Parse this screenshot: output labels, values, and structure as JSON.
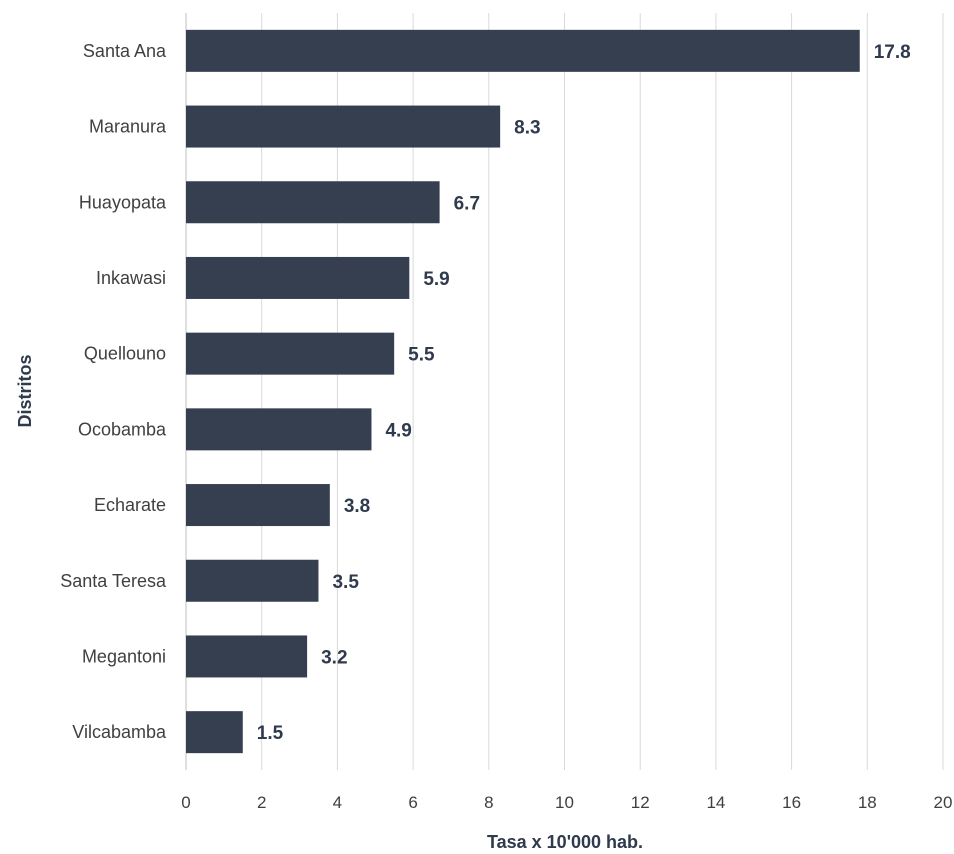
{
  "chart_data": {
    "type": "bar",
    "orientation": "horizontal",
    "categories": [
      "Santa Ana",
      "Maranura",
      "Huayopata",
      "Inkawasi",
      "Quellouno",
      "Ocobamba",
      "Echarate",
      "Santa Teresa",
      "Megantoni",
      "Vilcabamba"
    ],
    "values": [
      17.8,
      8.3,
      6.7,
      5.9,
      5.5,
      4.9,
      3.8,
      3.5,
      3.2,
      1.5
    ],
    "value_labels": [
      "17.8",
      "8.3",
      "6.7",
      "5.9",
      "5.5",
      "4.9",
      "3.8",
      "3.5",
      "3.2",
      "1.5"
    ],
    "xlabel": "Tasa x 10'000  hab.",
    "ylabel": "Distritos",
    "xlim": [
      0,
      20
    ],
    "x_ticks": [
      0,
      2,
      4,
      6,
      8,
      10,
      12,
      14,
      16,
      18,
      20
    ],
    "grid": "vertical",
    "legend": "none",
    "bar_color": "#353f50",
    "grid_color": "#d9d9d9"
  }
}
